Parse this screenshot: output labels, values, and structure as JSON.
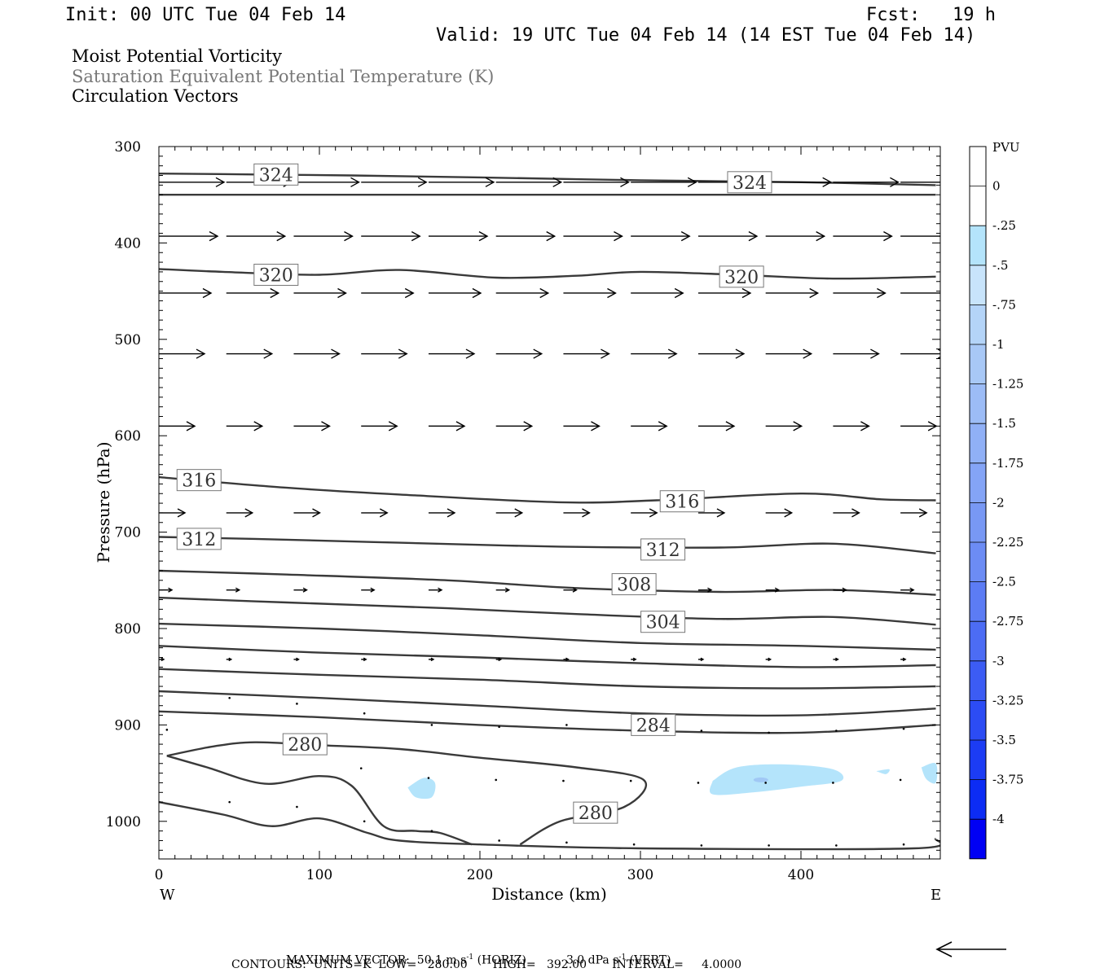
{
  "header": {
    "init": "Init: 00 UTC Tue 04 Feb 14",
    "fcst": "Fcst:   19 h",
    "valid": "Valid: 19 UTC Tue 04 Feb 14 (14 EST Tue 04 Feb 14)"
  },
  "fields": {
    "line1": "Moist Potential Vorticity",
    "line2": "Saturation Equivalent Potential Temperature (K)",
    "line3": "Circulation Vectors"
  },
  "footer": {
    "max_vector_label": "MAXIMUM VECTOR:",
    "max_vector_horiz": "50.1 m s",
    "exp": "-1",
    "horiz_tag": "(HORIZ)",
    "max_vector_vert": "3.0 dPa s",
    "vert_tag": "(VERT)",
    "contours": "CONTOURS:  UNITS=K  LOW=   280.00       HIGH=   392.00       INTERVAL=     4.0000"
  },
  "colors": {
    "contour": "#3a3a3a",
    "vector": "#000000",
    "shade_light": "#b4e4fb",
    "shade_mid": "#a0c8f5"
  },
  "chart_data": {
    "type": "cross-section",
    "xlabel": "Distance (km)",
    "ylabel": "Pressure (hPa)",
    "xlim": [
      0,
      484
    ],
    "ylim": [
      1030,
      300
    ],
    "x_ticks": [
      0,
      100,
      200,
      300,
      400
    ],
    "y_ticks": [
      300,
      400,
      500,
      600,
      700,
      800,
      900,
      1000
    ],
    "x_end_labels": {
      "left": "W",
      "right": "E"
    },
    "contour_labels": [
      {
        "value": "324",
        "x": 73,
        "p": 329
      },
      {
        "value": "324",
        "x": 368,
        "p": 337
      },
      {
        "value": "320",
        "x": 73,
        "p": 433
      },
      {
        "value": "320",
        "x": 363,
        "p": 435
      },
      {
        "value": "316",
        "x": 25,
        "p": 646
      },
      {
        "value": "316",
        "x": 326,
        "p": 668
      },
      {
        "value": "312",
        "x": 25,
        "p": 707
      },
      {
        "value": "312",
        "x": 314,
        "p": 718
      },
      {
        "value": "308",
        "x": 296,
        "p": 754
      },
      {
        "value": "304",
        "x": 314,
        "p": 793
      },
      {
        "value": "284",
        "x": 308,
        "p": 900
      },
      {
        "value": "280",
        "x": 91,
        "p": 920
      },
      {
        "value": "280",
        "x": 272,
        "p": 991
      }
    ],
    "isentropes": [
      [
        [
          0,
          328
        ],
        [
          60,
          329
        ],
        [
          120,
          330
        ],
        [
          200,
          332
        ],
        [
          300,
          335
        ],
        [
          400,
          337
        ],
        [
          484,
          340
        ]
      ],
      [
        [
          0,
          350
        ],
        [
          484,
          350
        ]
      ],
      [
        [
          0,
          427
        ],
        [
          40,
          430
        ],
        [
          100,
          433
        ],
        [
          150,
          428
        ],
        [
          210,
          436
        ],
        [
          260,
          434
        ],
        [
          300,
          430
        ],
        [
          360,
          433
        ],
        [
          420,
          437
        ],
        [
          484,
          435
        ]
      ],
      [
        [
          0,
          643
        ],
        [
          80,
          654
        ],
        [
          150,
          661
        ],
        [
          250,
          669
        ],
        [
          310,
          667
        ],
        [
          400,
          660
        ],
        [
          450,
          666
        ],
        [
          484,
          667
        ]
      ],
      [
        [
          0,
          705
        ],
        [
          60,
          707
        ],
        [
          150,
          711
        ],
        [
          250,
          715
        ],
        [
          350,
          716
        ],
        [
          420,
          712
        ],
        [
          484,
          722
        ]
      ],
      [
        [
          0,
          740
        ],
        [
          80,
          744
        ],
        [
          180,
          750
        ],
        [
          260,
          758
        ],
        [
          350,
          762
        ],
        [
          420,
          760
        ],
        [
          484,
          765
        ]
      ],
      [
        [
          0,
          768
        ],
        [
          80,
          773
        ],
        [
          180,
          779
        ],
        [
          260,
          785
        ],
        [
          350,
          790
        ],
        [
          420,
          788
        ],
        [
          484,
          796
        ]
      ],
      [
        [
          0,
          795
        ],
        [
          100,
          800
        ],
        [
          200,
          807
        ],
        [
          300,
          815
        ],
        [
          400,
          818
        ],
        [
          484,
          822
        ]
      ],
      [
        [
          0,
          818
        ],
        [
          100,
          825
        ],
        [
          200,
          830
        ],
        [
          300,
          836
        ],
        [
          400,
          840
        ],
        [
          484,
          838
        ]
      ],
      [
        [
          0,
          842
        ],
        [
          100,
          848
        ],
        [
          200,
          853
        ],
        [
          300,
          860
        ],
        [
          400,
          862
        ],
        [
          484,
          860
        ]
      ],
      [
        [
          0,
          865
        ],
        [
          100,
          872
        ],
        [
          200,
          880
        ],
        [
          300,
          888
        ],
        [
          400,
          890
        ],
        [
          484,
          883
        ]
      ],
      [
        [
          0,
          886
        ],
        [
          100,
          892
        ],
        [
          200,
          900
        ],
        [
          300,
          906
        ],
        [
          400,
          908
        ],
        [
          484,
          900
        ]
      ],
      [
        [
          5,
          932
        ],
        [
          35,
          922
        ],
        [
          60,
          918
        ],
        [
          100,
          921
        ],
        [
          150,
          925
        ],
        [
          200,
          934
        ],
        [
          260,
          944
        ],
        [
          302,
          957
        ],
        [
          290,
          985
        ],
        [
          250,
          1000
        ],
        [
          225,
          1024
        ]
      ],
      [
        [
          5,
          932
        ],
        [
          30,
          944
        ],
        [
          66,
          961
        ],
        [
          100,
          953
        ],
        [
          120,
          963
        ],
        [
          140,
          1005
        ],
        [
          160,
          1010
        ],
        [
          175,
          1012
        ],
        [
          195,
          1024
        ]
      ],
      [
        [
          0,
          980
        ],
        [
          40,
          993
        ],
        [
          70,
          1005
        ],
        [
          100,
          997
        ],
        [
          130,
          1012
        ],
        [
          150,
          1020
        ],
        [
          200,
          1024
        ],
        [
          300,
          1028
        ],
        [
          470,
          1028
        ],
        [
          484,
          1018
        ]
      ]
    ],
    "shaded_regions": [
      {
        "level": "-0.25",
        "points": [
          [
            155,
            965
          ],
          [
            165,
            955
          ],
          [
            172,
            960
          ],
          [
            170,
            975
          ],
          [
            160,
            975
          ]
        ]
      },
      {
        "level": "-0.25",
        "points": [
          [
            345,
            958
          ],
          [
            360,
            944
          ],
          [
            390,
            941
          ],
          [
            420,
            946
          ],
          [
            425,
            958
          ],
          [
            400,
            964
          ],
          [
            370,
            970
          ],
          [
            345,
            972
          ]
        ]
      },
      {
        "level": "-0.25",
        "points": [
          [
            475,
            944
          ],
          [
            484,
            940
          ],
          [
            484,
            960
          ],
          [
            478,
            956
          ]
        ]
      },
      {
        "level": "-0.25",
        "points": [
          [
            447,
            948
          ],
          [
            455,
            946
          ],
          [
            453,
            951
          ]
        ]
      }
    ],
    "vector_rows": [
      {
        "p": 337,
        "u": 40,
        "w": 0
      },
      {
        "p": 393,
        "u": 36,
        "w": 0
      },
      {
        "p": 452,
        "u": 32,
        "w": 0
      },
      {
        "p": 515,
        "u": 28,
        "w": 0
      },
      {
        "p": 590,
        "u": 22,
        "w": 0
      },
      {
        "p": 680,
        "u": 16,
        "w": 0
      },
      {
        "p": 760,
        "u": 8,
        "w": 0
      },
      {
        "p": 832,
        "u": 3,
        "w": 0
      }
    ],
    "vector_x": [
      0,
      42,
      84,
      126,
      168,
      210,
      252,
      294,
      336,
      378,
      420,
      462
    ],
    "reference_vector": {
      "u": 50.1,
      "units": "m s-1"
    },
    "colorbar": {
      "title": "PVU",
      "levels": [
        "0",
        "-.25",
        "-.5",
        "-.75",
        "-1",
        "-1.25",
        "-1.5",
        "-1.75",
        "-2",
        "-2.25",
        "-2.5",
        "-2.75",
        "-3",
        "-3.25",
        "-3.5",
        "-3.75",
        "-4"
      ],
      "colors": [
        "#ffffff",
        "#ffffff",
        "#b4e4fb",
        "#c8e4fb",
        "#b4d4f8",
        "#a8c8f6",
        "#9cbcf6",
        "#90b0f6",
        "#84a4f6",
        "#7898f4",
        "#6c8cf4",
        "#5c7cf4",
        "#4c6cf4",
        "#3c5cf4",
        "#2c4cf4",
        "#1c3cf4",
        "#0c2cf4",
        "#0000f4"
      ]
    }
  }
}
